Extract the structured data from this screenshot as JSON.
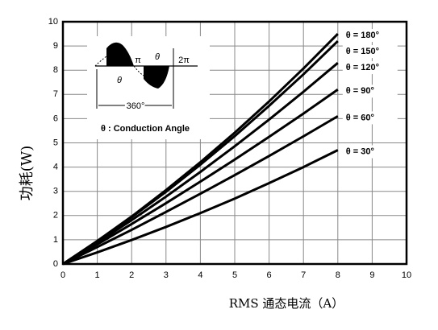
{
  "chart_data": {
    "type": "line",
    "x_label": "RMS 通态电流（A）",
    "y_label": "功耗(W)",
    "x": [
      0,
      1,
      2,
      3,
      4,
      5,
      6,
      7,
      8
    ],
    "series": [
      {
        "name": "θ = 180°",
        "color": "#000000",
        "values": [
          0,
          0.95,
          1.96,
          3.05,
          4.2,
          5.42,
          6.71,
          8.07,
          9.5
        ]
      },
      {
        "name": "θ = 150°",
        "color": "#000000",
        "values": [
          0,
          0.93,
          1.93,
          2.98,
          4.1,
          5.28,
          6.53,
          7.83,
          9.2
        ]
      },
      {
        "name": "θ = 120°",
        "color": "#000000",
        "values": [
          0,
          0.88,
          1.81,
          2.78,
          3.8,
          4.86,
          5.96,
          7.11,
          8.3
        ]
      },
      {
        "name": "θ = 90°",
        "color": "#000000",
        "values": [
          0,
          0.81,
          1.65,
          2.51,
          3.4,
          4.31,
          5.25,
          6.21,
          7.2
        ]
      },
      {
        "name": "θ = 60°",
        "color": "#000000",
        "values": [
          0,
          0.7,
          1.41,
          2.15,
          2.9,
          3.67,
          4.46,
          5.27,
          6.1
        ]
      },
      {
        "name": "θ = 30°",
        "color": "#000000",
        "values": [
          0,
          0.48,
          0.99,
          1.53,
          2.1,
          2.7,
          3.34,
          4.0,
          4.7
        ]
      }
    ],
    "xlim": [
      0,
      10
    ],
    "ylim": [
      0,
      10
    ],
    "xticks": [
      0,
      1,
      2,
      3,
      4,
      5,
      6,
      7,
      8,
      9,
      10
    ],
    "yticks": [
      0,
      1,
      2,
      3,
      4,
      5,
      6,
      7,
      8,
      9,
      10
    ],
    "grid": true,
    "annotations": [
      "θ : Conduction Angle",
      "360°",
      "π",
      "2π",
      "θ",
      "θ"
    ]
  }
}
